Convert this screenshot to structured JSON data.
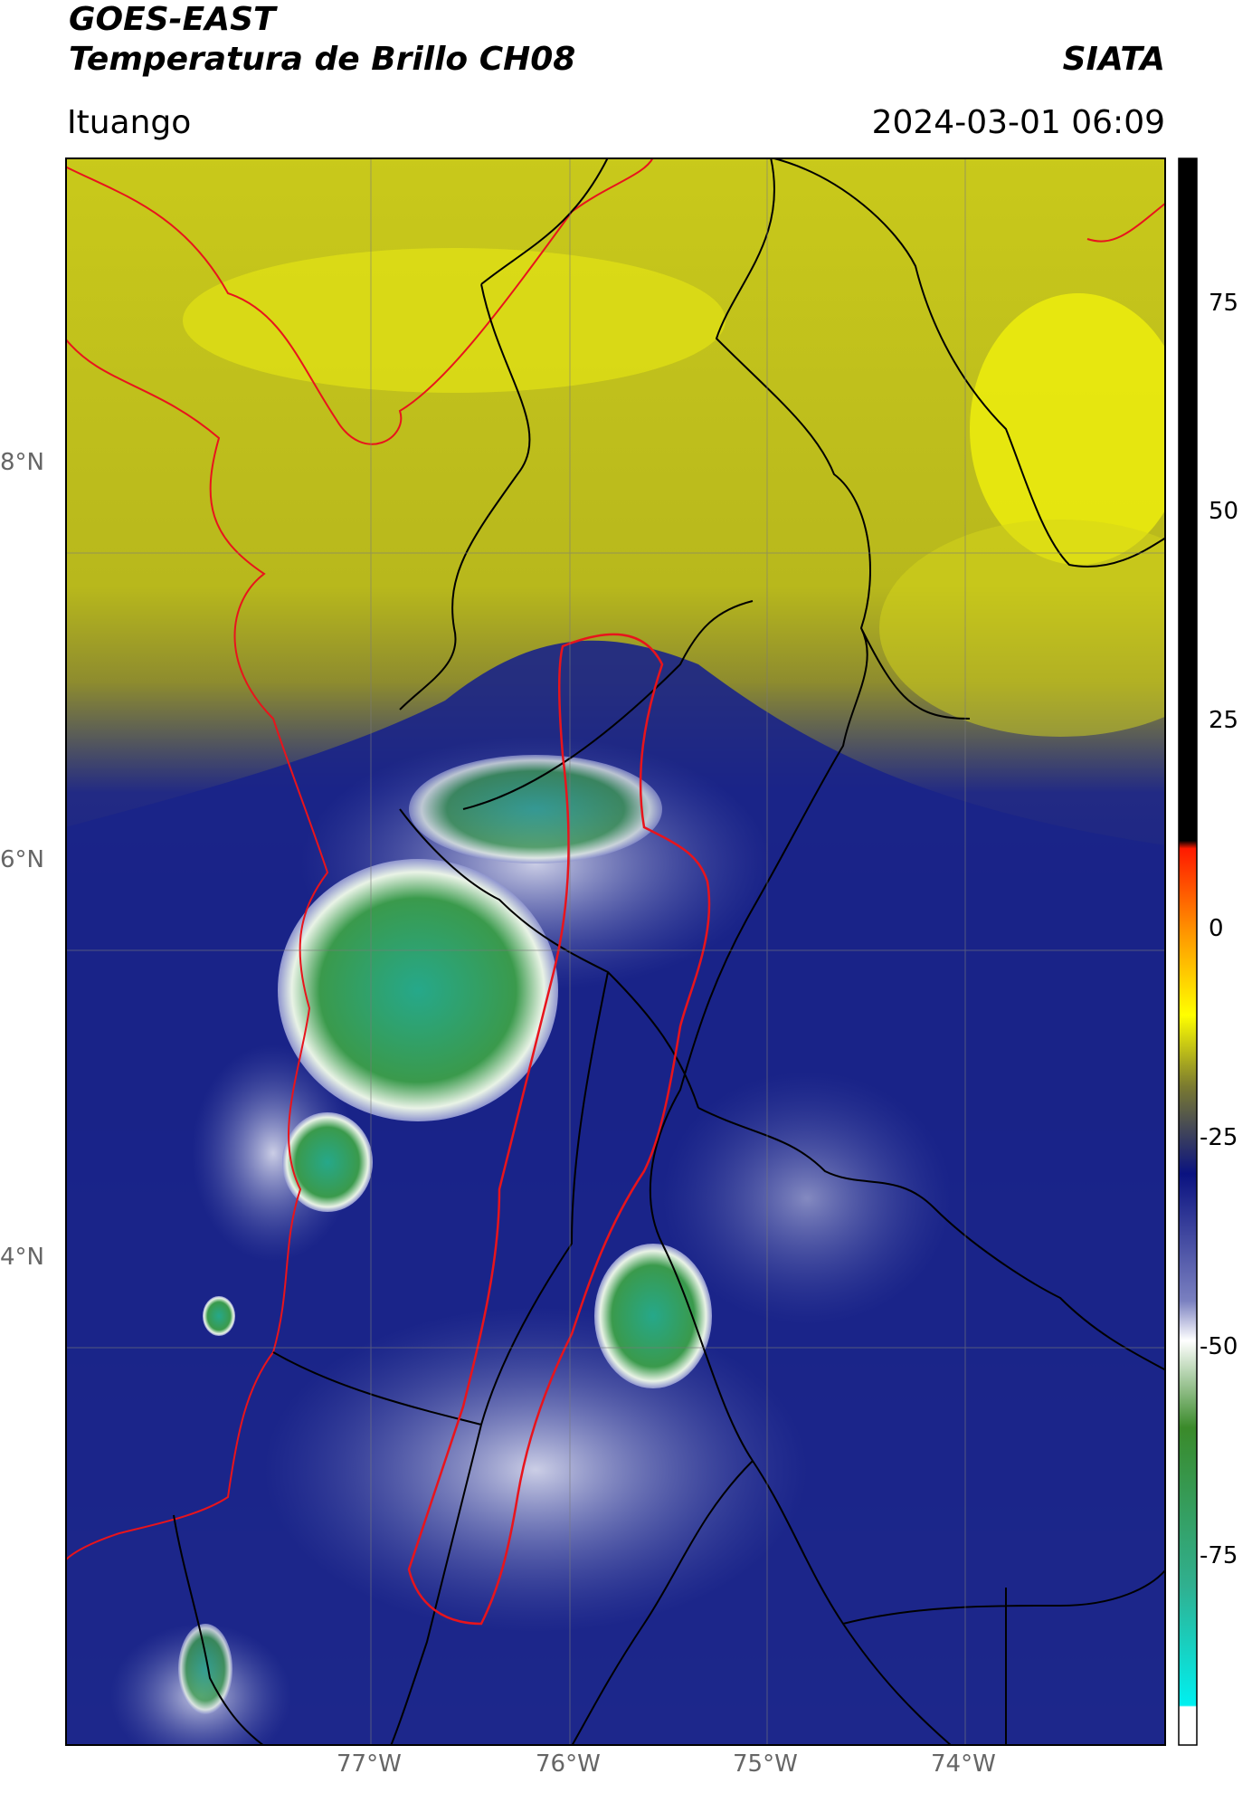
{
  "header": {
    "satellite": "GOES-EAST",
    "product": "Temperatura de Brillo CH08",
    "org": "SIATA",
    "region": "Ituango",
    "datetime": "2024-03-01 06:09"
  },
  "map": {
    "lat_labels": [
      "8°N",
      "6°N",
      "4°N"
    ],
    "lon_labels": [
      "77°W",
      "76°W",
      "75°W",
      "74°W"
    ],
    "lat_values": [
      8,
      6,
      4
    ],
    "lon_values": [
      -77,
      -76,
      -75,
      -74
    ],
    "extent": {
      "lon_min": -78.55,
      "lon_max": -73.0,
      "lat_min": 1.55,
      "lat_max": 9.55
    },
    "colors": {
      "basin_outline": "#e8141c",
      "borders": "#000000",
      "coastline": "#e8141c"
    }
  },
  "colorbar": {
    "ticks": [
      "75",
      "50",
      "25",
      "0",
      "-25",
      "-50",
      "-75"
    ],
    "tick_values": [
      75,
      50,
      25,
      0,
      -25,
      -50,
      -75
    ],
    "range": [
      -90,
      90
    ]
  }
}
